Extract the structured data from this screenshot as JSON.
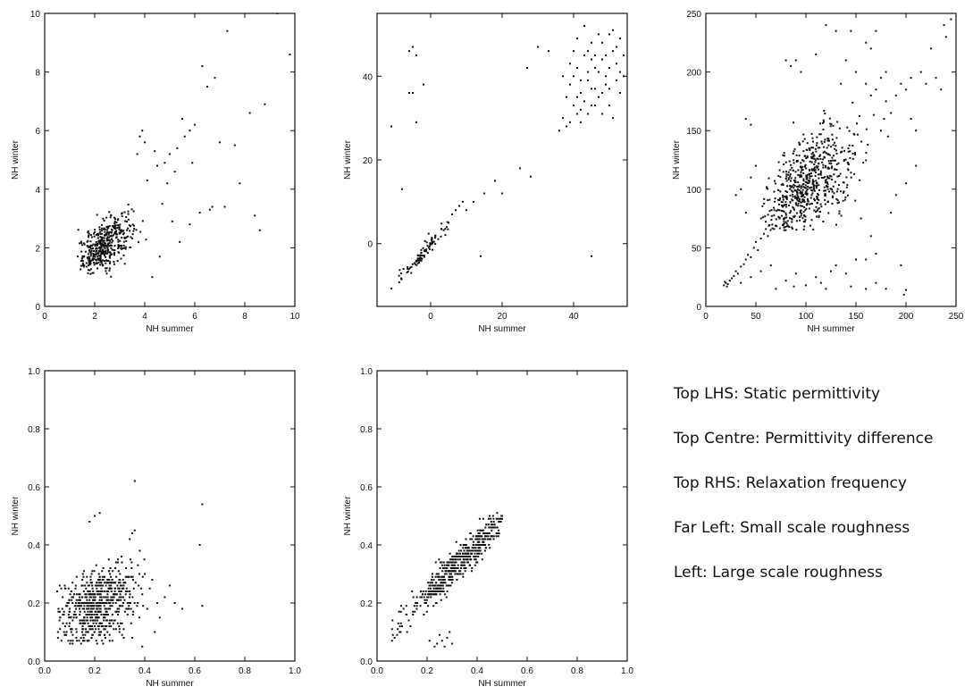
{
  "legend": [
    "Top LHS: Static permittivity",
    "Top Centre: Permittivity difference",
    "Top RHS: Relaxation frequency",
    "Far Left: Small scale roughness",
    "Left: Large scale roughness"
  ],
  "chart_data": [
    {
      "type": "scatter",
      "xlabel": "NH summer",
      "ylabel": "NH winter",
      "xlim": [
        0,
        10
      ],
      "ylim": [
        0,
        10
      ],
      "xticks": [
        0,
        2,
        4,
        6,
        8,
        10
      ],
      "yticks": [
        0,
        2,
        4,
        6,
        8,
        10
      ],
      "grid": false,
      "cloud": {
        "n": 420,
        "cx": 2.4,
        "cy": 2.1,
        "sx": 0.55,
        "sy": 0.5,
        "rho": 0.6,
        "x_range": [
          1.3,
          4.6
        ],
        "y_range": [
          1.0,
          6.0
        ]
      },
      "points": [
        [
          3.9,
          6.0
        ],
        [
          3.8,
          5.8
        ],
        [
          4.0,
          5.6
        ],
        [
          4.4,
          5.3
        ],
        [
          4.5,
          4.8
        ],
        [
          4.8,
          4.9
        ],
        [
          5.0,
          5.2
        ],
        [
          5.3,
          5.4
        ],
        [
          5.5,
          6.4
        ],
        [
          5.8,
          6.0
        ],
        [
          6.0,
          6.2
        ],
        [
          5.6,
          5.8
        ],
        [
          6.3,
          8.2
        ],
        [
          6.5,
          7.5
        ],
        [
          6.8,
          7.8
        ],
        [
          7.3,
          9.4
        ],
        [
          7.0,
          5.6
        ],
        [
          7.6,
          5.5
        ],
        [
          7.8,
          4.2
        ],
        [
          8.2,
          6.6
        ],
        [
          8.4,
          3.1
        ],
        [
          8.8,
          6.9
        ],
        [
          9.8,
          8.6
        ],
        [
          9.3,
          10.0
        ],
        [
          6.7,
          3.4
        ],
        [
          6.2,
          3.2
        ],
        [
          5.8,
          2.8
        ],
        [
          5.4,
          2.2
        ],
        [
          4.6,
          1.7
        ],
        [
          4.3,
          1.0
        ],
        [
          4.9,
          4.2
        ],
        [
          5.2,
          4.6
        ],
        [
          4.7,
          3.5
        ],
        [
          5.9,
          4.9
        ],
        [
          6.6,
          3.3
        ],
        [
          8.6,
          2.6
        ],
        [
          7.2,
          3.4
        ],
        [
          4.1,
          4.3
        ],
        [
          5.1,
          2.9
        ],
        [
          3.7,
          5.2
        ]
      ]
    },
    {
      "type": "scatter",
      "xlabel": "NH summer",
      "ylabel": "NH winter",
      "xlim": [
        -15,
        55
      ],
      "ylim": [
        -15,
        55
      ],
      "xticks": [
        0,
        20,
        40
      ],
      "yticks": [
        0,
        20,
        40
      ],
      "grid": false,
      "cloud": {
        "n": 90,
        "cx": -2,
        "cy": -2,
        "sx": 4.0,
        "sy": 4.0,
        "rho": 0.97,
        "x_range": [
          -12,
          6
        ],
        "y_range": [
          -12,
          6
        ]
      },
      "points": [
        [
          5,
          5
        ],
        [
          6,
          7
        ],
        [
          7,
          8
        ],
        [
          8,
          9
        ],
        [
          9,
          10
        ],
        [
          10,
          8
        ],
        [
          12,
          10
        ],
        [
          14,
          -3
        ],
        [
          15,
          12
        ],
        [
          18,
          15
        ],
        [
          20,
          12
        ],
        [
          25,
          18
        ],
        [
          28,
          16
        ],
        [
          27,
          42
        ],
        [
          30,
          47
        ],
        [
          33,
          46
        ],
        [
          -6,
          46
        ],
        [
          -5,
          47
        ],
        [
          -5,
          36
        ],
        [
          -4,
          45
        ],
        [
          -6,
          36
        ],
        [
          -4,
          29
        ],
        [
          -11,
          28
        ],
        [
          -8,
          13
        ],
        [
          -2,
          38
        ],
        [
          38,
          28
        ],
        [
          36,
          27
        ],
        [
          37,
          30
        ],
        [
          45,
          -3
        ],
        [
          40,
          46
        ],
        [
          41,
          42
        ],
        [
          42,
          39
        ],
        [
          43,
          45
        ],
        [
          44,
          41
        ],
        [
          45,
          48
        ],
        [
          46,
          42
        ],
        [
          47,
          50
        ],
        [
          48,
          44
        ],
        [
          49,
          40
        ],
        [
          50,
          37
        ],
        [
          51,
          46
        ],
        [
          52,
          43
        ],
        [
          53,
          49
        ],
        [
          54,
          45
        ],
        [
          38,
          35
        ],
        [
          39,
          38
        ],
        [
          40,
          33
        ],
        [
          41,
          31
        ],
        [
          42,
          36
        ],
        [
          43,
          34
        ],
        [
          44,
          39
        ],
        [
          45,
          37
        ],
        [
          46,
          33
        ],
        [
          47,
          35
        ],
        [
          48,
          31
        ],
        [
          49,
          38
        ],
        [
          50,
          33
        ],
        [
          51,
          30
        ],
        [
          52,
          39
        ],
        [
          53,
          36
        ],
        [
          39,
          43
        ],
        [
          41,
          49
        ],
        [
          43,
          52
        ],
        [
          45,
          44
        ],
        [
          47,
          41
        ],
        [
          49,
          45
        ],
        [
          51,
          51
        ],
        [
          53,
          41
        ],
        [
          37,
          40
        ],
        [
          40,
          40
        ],
        [
          42,
          29
        ],
        [
          44,
          31
        ],
        [
          46,
          37
        ],
        [
          48,
          36
        ],
        [
          50,
          42
        ],
        [
          52,
          47
        ],
        [
          54,
          40
        ],
        [
          39,
          29
        ],
        [
          41,
          35
        ],
        [
          44,
          46
        ],
        [
          46,
          45
        ],
        [
          48,
          48
        ],
        [
          50,
          50
        ],
        [
          42,
          32
        ],
        [
          45,
          33
        ]
      ]
    },
    {
      "type": "scatter",
      "xlabel": "NH summer",
      "ylabel": "NH winter",
      "xlim": [
        0,
        250
      ],
      "ylim": [
        0,
        250
      ],
      "xticks": [
        0,
        50,
        100,
        150,
        200,
        250
      ],
      "yticks": [
        0,
        50,
        100,
        150,
        200,
        250
      ],
      "grid": false,
      "cloud": {
        "n": 650,
        "cx": 100,
        "cy": 100,
        "sx": 22,
        "sy": 25,
        "rho": 0.55,
        "x_range": [
          55,
          175
        ],
        "y_range": [
          65,
          175
        ]
      },
      "points": [
        [
          18,
          18
        ],
        [
          20,
          20
        ],
        [
          22,
          19
        ],
        [
          19,
          21
        ],
        [
          21,
          17
        ],
        [
          24,
          22
        ],
        [
          26,
          24
        ],
        [
          28,
          26
        ],
        [
          30,
          30
        ],
        [
          32,
          28
        ],
        [
          35,
          34
        ],
        [
          38,
          36
        ],
        [
          40,
          40
        ],
        [
          42,
          44
        ],
        [
          45,
          42
        ],
        [
          48,
          50
        ],
        [
          50,
          55
        ],
        [
          52,
          48
        ],
        [
          55,
          58
        ],
        [
          58,
          62
        ],
        [
          60,
          66
        ],
        [
          62,
          60
        ],
        [
          35,
          20
        ],
        [
          45,
          25
        ],
        [
          55,
          30
        ],
        [
          65,
          35
        ],
        [
          70,
          15
        ],
        [
          80,
          22
        ],
        [
          90,
          28
        ],
        [
          100,
          18
        ],
        [
          110,
          25
        ],
        [
          120,
          15
        ],
        [
          130,
          35
        ],
        [
          140,
          28
        ],
        [
          150,
          40
        ],
        [
          160,
          15
        ],
        [
          170,
          20
        ],
        [
          180,
          15
        ],
        [
          195,
          35
        ],
        [
          200,
          14
        ],
        [
          198,
          10
        ],
        [
          205,
          160
        ],
        [
          210,
          150
        ],
        [
          195,
          190
        ],
        [
          200,
          185
        ],
        [
          205,
          195
        ],
        [
          215,
          200
        ],
        [
          220,
          190
        ],
        [
          225,
          220
        ],
        [
          230,
          195
        ],
        [
          235,
          185
        ],
        [
          238,
          240
        ],
        [
          240,
          230
        ],
        [
          245,
          245
        ],
        [
          180,
          175
        ],
        [
          185,
          165
        ],
        [
          190,
          180
        ],
        [
          175,
          150
        ],
        [
          178,
          160
        ],
        [
          182,
          145
        ],
        [
          160,
          225
        ],
        [
          165,
          220
        ],
        [
          120,
          240
        ],
        [
          130,
          235
        ],
        [
          145,
          235
        ],
        [
          170,
          235
        ],
        [
          80,
          210
        ],
        [
          85,
          205
        ],
        [
          90,
          210
        ],
        [
          95,
          200
        ],
        [
          110,
          215
        ],
        [
          40,
          160
        ],
        [
          45,
          155
        ],
        [
          30,
          95
        ],
        [
          35,
          100
        ],
        [
          40,
          80
        ],
        [
          45,
          110
        ],
        [
          50,
          120
        ],
        [
          150,
          200
        ],
        [
          160,
          190
        ],
        [
          165,
          180
        ],
        [
          170,
          185
        ],
        [
          175,
          195
        ],
        [
          180,
          200
        ],
        [
          140,
          210
        ],
        [
          135,
          190
        ],
        [
          155,
          75
        ],
        [
          165,
          60
        ],
        [
          185,
          80
        ],
        [
          160,
          40
        ],
        [
          170,
          45
        ],
        [
          190,
          95
        ],
        [
          200,
          105
        ],
        [
          210,
          120
        ],
        [
          115,
          20
        ],
        [
          125,
          30
        ],
        [
          88,
          17
        ],
        [
          145,
          17
        ]
      ]
    },
    {
      "type": "scatter",
      "xlabel": "NH summer",
      "ylabel": "NH winter",
      "xlim": [
        0,
        1.0
      ],
      "ylim": [
        0,
        1.0
      ],
      "xticks": [
        0.0,
        0.2,
        0.4,
        0.6,
        0.8,
        1.0
      ],
      "yticks": [
        0.0,
        0.2,
        0.4,
        0.6,
        0.8,
        1.0
      ],
      "grid": false,
      "cloud": {
        "n": 620,
        "cx": 0.21,
        "cy": 0.19,
        "sx": 0.075,
        "sy": 0.07,
        "rho": 0.35,
        "x_range": [
          0.05,
          0.4
        ],
        "y_range": [
          0.06,
          0.36
        ],
        "quant": 0.01
      },
      "points": [
        [
          0.36,
          0.62
        ],
        [
          0.2,
          0.5
        ],
        [
          0.22,
          0.51
        ],
        [
          0.18,
          0.48
        ],
        [
          0.35,
          0.44
        ],
        [
          0.36,
          0.45
        ],
        [
          0.34,
          0.42
        ],
        [
          0.63,
          0.54
        ],
        [
          0.62,
          0.4
        ],
        [
          0.63,
          0.19
        ],
        [
          0.5,
          0.26
        ],
        [
          0.48,
          0.22
        ],
        [
          0.45,
          0.2
        ],
        [
          0.42,
          0.25
        ],
        [
          0.41,
          0.18
        ],
        [
          0.05,
          0.24
        ],
        [
          0.06,
          0.26
        ],
        [
          0.38,
          0.38
        ],
        [
          0.4,
          0.3
        ],
        [
          0.43,
          0.28
        ],
        [
          0.52,
          0.2
        ],
        [
          0.55,
          0.18
        ],
        [
          0.46,
          0.15
        ],
        [
          0.44,
          0.1
        ],
        [
          0.39,
          0.05
        ]
      ]
    },
    {
      "type": "scatter",
      "xlabel": "NH summer",
      "ylabel": "NH winter",
      "xlim": [
        0,
        1.0
      ],
      "ylim": [
        0,
        1.0
      ],
      "xticks": [
        0.0,
        0.2,
        0.4,
        0.6,
        0.8,
        1.0
      ],
      "yticks": [
        0.0,
        0.2,
        0.4,
        0.6,
        0.8,
        1.0
      ],
      "grid": false,
      "cloud": {
        "n": 520,
        "cx": 0.33,
        "cy": 0.34,
        "sx": 0.11,
        "sy": 0.1,
        "rho": 0.96,
        "x_range": [
          0.05,
          0.5
        ],
        "y_range": [
          0.06,
          0.51
        ],
        "quant": 0.01
      },
      "points": [
        [
          0.23,
          0.05
        ],
        [
          0.24,
          0.06
        ],
        [
          0.26,
          0.07
        ],
        [
          0.27,
          0.05
        ],
        [
          0.28,
          0.08
        ],
        [
          0.25,
          0.09
        ],
        [
          0.29,
          0.1
        ],
        [
          0.3,
          0.06
        ],
        [
          0.21,
          0.07
        ],
        [
          0.06,
          0.07
        ],
        [
          0.07,
          0.08
        ],
        [
          0.08,
          0.09
        ],
        [
          0.09,
          0.1
        ],
        [
          0.06,
          0.11
        ],
        [
          0.1,
          0.12
        ],
        [
          0.45,
          0.5
        ],
        [
          0.48,
          0.51
        ],
        [
          0.5,
          0.5
        ],
        [
          0.49,
          0.49
        ],
        [
          0.47,
          0.47
        ]
      ]
    }
  ]
}
